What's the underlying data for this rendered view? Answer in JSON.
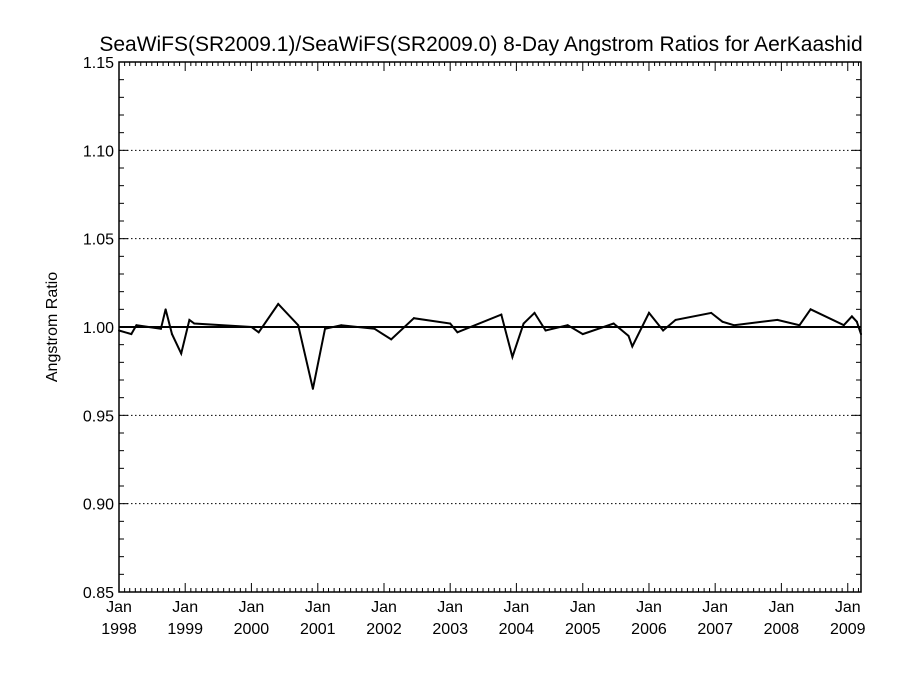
{
  "chart_data": {
    "type": "line",
    "title": "SeaWiFS(SR2009.1)/SeaWiFS(SR2009.0) 8-Day Angstrom Ratios for AerKaashid",
    "xlabel": "",
    "ylabel": "Angstrom Ratio",
    "xlim": [
      "1998-01-01",
      "2009-03-15"
    ],
    "ylim": [
      0.85,
      1.15
    ],
    "yticks": [
      "0.85",
      "0.90",
      "0.95",
      "1.00",
      "1.05",
      "1.10",
      "1.15"
    ],
    "xticks": [
      {
        "top": "Jan",
        "bottom": "1998",
        "date": "1998-01-01"
      },
      {
        "top": "Jan",
        "bottom": "1999",
        "date": "1999-01-01"
      },
      {
        "top": "Jan",
        "bottom": "2000",
        "date": "2000-01-01"
      },
      {
        "top": "Jan",
        "bottom": "2001",
        "date": "2001-01-01"
      },
      {
        "top": "Jan",
        "bottom": "2002",
        "date": "2002-01-01"
      },
      {
        "top": "Jan",
        "bottom": "2003",
        "date": "2003-01-01"
      },
      {
        "top": "Jan",
        "bottom": "2004",
        "date": "2004-01-01"
      },
      {
        "top": "Jan",
        "bottom": "2005",
        "date": "2005-01-01"
      },
      {
        "top": "Jan",
        "bottom": "2006",
        "date": "2006-01-01"
      },
      {
        "top": "Jan",
        "bottom": "2007",
        "date": "2007-01-01"
      },
      {
        "top": "Jan",
        "bottom": "2008",
        "date": "2008-01-01"
      },
      {
        "top": "Jan",
        "bottom": "2009",
        "date": "2009-01-01"
      }
    ],
    "grid": {
      "y": "dotted",
      "x": false
    },
    "reference_line": 1.0,
    "series": [
      {
        "x": [
          "1998-01-01",
          "1998-03-10",
          "1998-04-07",
          "1998-08-20",
          "1998-09-15",
          "1998-10-20",
          "1998-12-10",
          "1999-01-24",
          "1999-02-20",
          "2000-01-01",
          "2000-02-10",
          "2000-05-28",
          "2000-09-15",
          "2000-12-05",
          "2001-02-10",
          "2001-05-10",
          "2001-11-10",
          "2002-02-10",
          "2002-06-15",
          "2003-01-01",
          "2003-02-10",
          "2003-10-10",
          "2003-12-10",
          "2004-02-10",
          "2004-04-10",
          "2004-06-10",
          "2004-10-10",
          "2005-01-01",
          "2005-06-20",
          "2005-09-10",
          "2005-10-01",
          "2006-01-01",
          "2006-03-20",
          "2006-05-28",
          "2006-12-10",
          "2007-02-10",
          "2007-04-15",
          "2007-12-10",
          "2008-04-10",
          "2008-06-10",
          "2008-12-10",
          "2009-01-24",
          "2009-02-20",
          "2009-03-15"
        ],
        "y": [
          0.998,
          0.996,
          1.001,
          0.999,
          1.01,
          0.996,
          0.985,
          1.004,
          1.002,
          1.0,
          0.997,
          1.013,
          1.001,
          0.965,
          0.999,
          1.001,
          0.999,
          0.993,
          1.005,
          1.002,
          0.997,
          1.007,
          0.983,
          1.002,
          1.008,
          0.998,
          1.001,
          0.996,
          1.002,
          0.995,
          0.989,
          1.008,
          0.998,
          1.004,
          1.008,
          1.003,
          1.001,
          1.004,
          1.001,
          1.01,
          1.001,
          1.006,
          1.003,
          0.996
        ]
      }
    ]
  }
}
